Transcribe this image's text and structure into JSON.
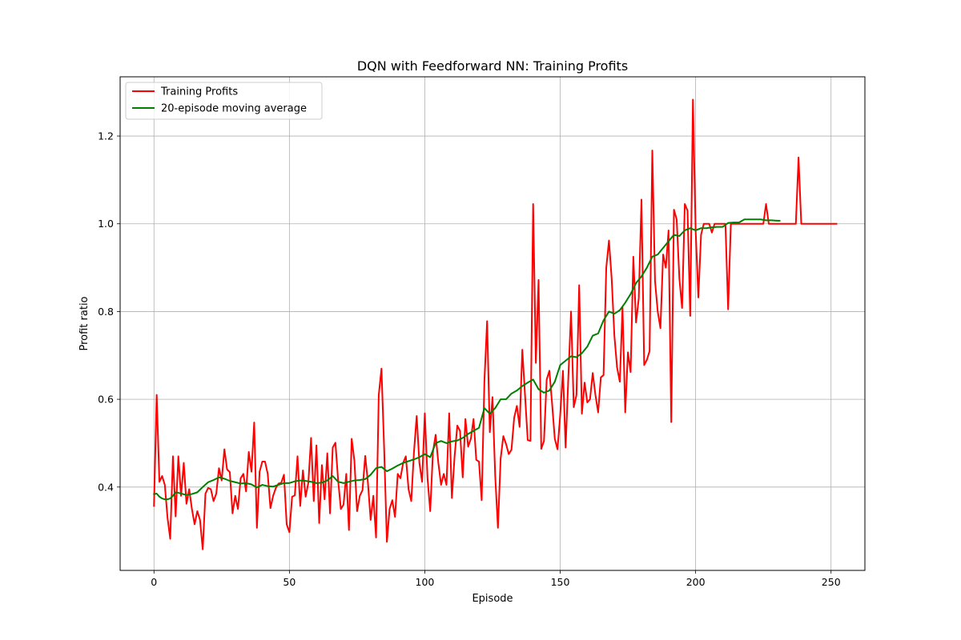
{
  "chart_data": {
    "type": "line",
    "title": "DQN with Feedforward NN: Training Profits",
    "xlabel": "Episode",
    "ylabel": "Profit ratio",
    "xlim": [
      -12.5,
      262.5
    ],
    "ylim": [
      0.21,
      1.335
    ],
    "xticks": [
      0,
      50,
      100,
      150,
      200,
      250
    ],
    "yticks": [
      0.4,
      0.6,
      0.8,
      1.0,
      1.2
    ],
    "xtick_labels": [
      "0",
      "50",
      "100",
      "150",
      "200",
      "250"
    ],
    "ytick_labels": [
      "0.4",
      "0.6",
      "0.8",
      "1.0",
      "1.2"
    ],
    "grid": true,
    "legend_position": "upper-left",
    "series": [
      {
        "name": "Training Profits",
        "color": "#ff0000",
        "y": [
          0.357,
          0.61,
          0.412,
          0.425,
          0.405,
          0.33,
          0.282,
          0.47,
          0.333,
          0.47,
          0.38,
          0.455,
          0.362,
          0.395,
          0.35,
          0.315,
          0.345,
          0.325,
          0.258,
          0.385,
          0.398,
          0.395,
          0.368,
          0.385,
          0.443,
          0.415,
          0.486,
          0.44,
          0.434,
          0.34,
          0.38,
          0.35,
          0.42,
          0.43,
          0.39,
          0.48,
          0.435,
          0.547,
          0.307,
          0.435,
          0.458,
          0.458,
          0.43,
          0.352,
          0.38,
          0.398,
          0.408,
          0.41,
          0.428,
          0.315,
          0.297,
          0.378,
          0.381,
          0.47,
          0.357,
          0.438,
          0.378,
          0.41,
          0.512,
          0.368,
          0.495,
          0.318,
          0.45,
          0.372,
          0.477,
          0.34,
          0.49,
          0.501,
          0.415,
          0.35,
          0.36,
          0.43,
          0.302,
          0.51,
          0.46,
          0.345,
          0.38,
          0.393,
          0.471,
          0.41,
          0.325,
          0.38,
          0.285,
          0.61,
          0.67,
          0.485,
          0.275,
          0.35,
          0.37,
          0.332,
          0.43,
          0.42,
          0.455,
          0.47,
          0.395,
          0.368,
          0.48,
          0.562,
          0.455,
          0.412,
          0.568,
          0.42,
          0.345,
          0.48,
          0.519,
          0.455,
          0.405,
          0.43,
          0.405,
          0.568,
          0.375,
          0.47,
          0.54,
          0.528,
          0.422,
          0.555,
          0.492,
          0.51,
          0.555,
          0.462,
          0.458,
          0.37,
          0.64,
          0.778,
          0.525,
          0.605,
          0.425,
          0.307,
          0.465,
          0.516,
          0.498,
          0.475,
          0.485,
          0.558,
          0.585,
          0.537,
          0.713,
          0.61,
          0.507,
          0.505,
          1.045,
          0.683,
          0.872,
          0.487,
          0.505,
          0.645,
          0.665,
          0.59,
          0.51,
          0.486,
          0.565,
          0.665,
          0.49,
          0.65,
          0.8,
          0.582,
          0.61,
          0.86,
          0.567,
          0.638,
          0.593,
          0.6,
          0.66,
          0.61,
          0.57,
          0.65,
          0.655,
          0.9,
          0.962,
          0.875,
          0.745,
          0.672,
          0.64,
          0.81,
          0.57,
          0.707,
          0.662,
          0.925,
          0.775,
          0.83,
          1.055,
          0.678,
          0.69,
          0.71,
          1.167,
          0.87,
          0.8,
          0.762,
          0.93,
          0.9,
          0.985,
          0.548,
          1.032,
          1.01,
          0.875,
          0.808,
          1.045,
          1.03,
          0.79,
          1.283,
          0.985,
          0.832,
          0.975,
          1.0,
          1.0,
          1.0,
          0.98,
          1.0,
          1.0,
          1.0,
          1.0,
          1.0,
          0.805,
          1.0,
          1.0,
          1.0,
          1.0,
          1.0,
          1.0,
          1.0,
          1.0,
          1.0,
          1.0,
          1.0,
          1.0,
          1.0,
          1.045,
          1.0,
          1.0,
          1.0,
          1.0,
          1.0,
          1.0,
          1.0,
          1.0,
          1.0,
          1.0,
          1.0,
          1.151,
          1.0,
          1.0,
          1.0,
          1.0,
          1.0,
          1.0,
          1.0,
          1.0,
          1.0,
          1.0,
          1.0,
          1.0,
          1.0,
          1.0
        ]
      },
      {
        "name": "20-episode moving average",
        "color": "#008000",
        "x": [
          0,
          1,
          2,
          3,
          4,
          5,
          6,
          7,
          8,
          9,
          10,
          12,
          14,
          16,
          18,
          20,
          22,
          24,
          26,
          28,
          30,
          32,
          34,
          36,
          38,
          40,
          42,
          44,
          46,
          48,
          50,
          52,
          54,
          56,
          58,
          60,
          62,
          64,
          66,
          68,
          70,
          72,
          74,
          76,
          78,
          80,
          82,
          84,
          86,
          88,
          90,
          92,
          94,
          96,
          98,
          100,
          102,
          104,
          106,
          108,
          110,
          112,
          114,
          116,
          118,
          120,
          122,
          124,
          126,
          128,
          130,
          132,
          134,
          136,
          138,
          140,
          142,
          144,
          146,
          148,
          150,
          152,
          154,
          156,
          158,
          160,
          162,
          164,
          166,
          168,
          170,
          172,
          174,
          176,
          178,
          180,
          182,
          184,
          186,
          188,
          190,
          192,
          194,
          196,
          198,
          200,
          202,
          204,
          206,
          208,
          210,
          212,
          214,
          216,
          218,
          220,
          222,
          224,
          226,
          228,
          230,
          231
        ],
        "y": [
          0.384,
          0.385,
          0.378,
          0.374,
          0.372,
          0.372,
          0.374,
          0.38,
          0.388,
          0.387,
          0.385,
          0.382,
          0.384,
          0.388,
          0.4,
          0.411,
          0.416,
          0.422,
          0.419,
          0.414,
          0.411,
          0.408,
          0.409,
          0.406,
          0.399,
          0.405,
          0.402,
          0.401,
          0.405,
          0.409,
          0.409,
          0.413,
          0.415,
          0.414,
          0.412,
          0.409,
          0.41,
          0.415,
          0.425,
          0.412,
          0.409,
          0.412,
          0.415,
          0.416,
          0.418,
          0.428,
          0.443,
          0.446,
          0.436,
          0.442,
          0.449,
          0.455,
          0.459,
          0.463,
          0.468,
          0.475,
          0.468,
          0.5,
          0.505,
          0.5,
          0.504,
          0.506,
          0.512,
          0.521,
          0.528,
          0.535,
          0.58,
          0.567,
          0.58,
          0.6,
          0.6,
          0.613,
          0.62,
          0.63,
          0.638,
          0.645,
          0.623,
          0.615,
          0.62,
          0.64,
          0.678,
          0.688,
          0.698,
          0.696,
          0.705,
          0.72,
          0.745,
          0.75,
          0.78,
          0.8,
          0.795,
          0.803,
          0.82,
          0.84,
          0.865,
          0.88,
          0.9,
          0.925,
          0.93,
          0.945,
          0.96,
          0.975,
          0.972,
          0.985,
          0.99,
          0.985,
          0.99,
          0.99,
          0.992,
          0.993,
          0.993,
          1.002,
          1.003,
          1.003,
          1.01,
          1.01,
          1.01,
          1.01,
          1.008,
          1.008,
          1.007,
          1.007
        ]
      }
    ]
  }
}
